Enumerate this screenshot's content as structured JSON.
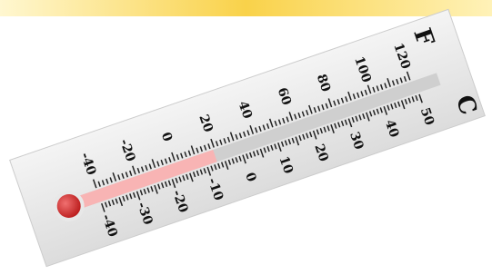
{
  "thermometer": {
    "fahrenheit_unit": "F",
    "celsius_unit": "C",
    "fahrenheit_labels": [
      -40,
      -20,
      0,
      20,
      40,
      60,
      80,
      100,
      120
    ],
    "celsius_labels": [
      -40,
      -30,
      -20,
      -10,
      0,
      10,
      20,
      30,
      40,
      50
    ]
  }
}
